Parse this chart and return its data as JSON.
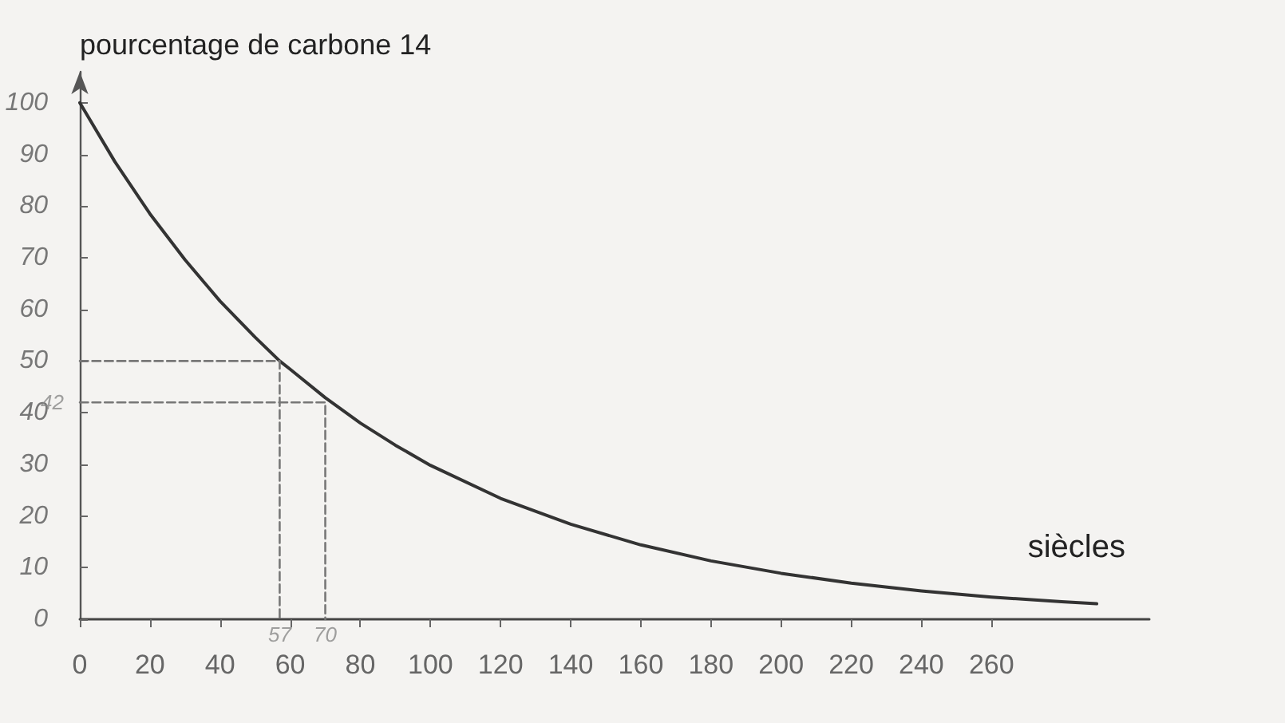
{
  "chart_data": {
    "type": "line",
    "ylabel": "pourcentage de carbone 14",
    "xlabel": "siècles",
    "xlim": [
      0,
      305
    ],
    "ylim": [
      0,
      106
    ],
    "xticks": [
      0,
      20,
      40,
      60,
      80,
      100,
      120,
      140,
      160,
      180,
      200,
      220,
      240,
      260
    ],
    "yticks": [
      0,
      10,
      20,
      30,
      40,
      50,
      60,
      70,
      80,
      90,
      100
    ],
    "grid": false,
    "marker": "none",
    "series": [
      {
        "color": "#333333",
        "line_style": "solid",
        "x": [
          0,
          10,
          20,
          30,
          40,
          50,
          57,
          60,
          70,
          80,
          90,
          100,
          120,
          140,
          160,
          180,
          200,
          220,
          240,
          260,
          280,
          290
        ],
        "values": [
          100,
          88.6,
          78.5,
          69.6,
          61.6,
          54.6,
          50,
          48.4,
          42.9,
          38,
          33.7,
          29.8,
          23.4,
          18.4,
          14.4,
          11.3,
          8.9,
          7,
          5.5,
          4.3,
          3.4,
          3
        ]
      },
      {
        "color": "#777777",
        "line_style": "dashed",
        "x": [
          0,
          57,
          57
        ],
        "values": [
          50,
          50,
          0
        ]
      },
      {
        "color": "#777777",
        "line_style": "dashed",
        "x": [
          0,
          70,
          70
        ],
        "values": [
          42,
          42,
          0
        ]
      }
    ],
    "annotations": [
      {
        "text": "57",
        "x": 57,
        "y": 0
      },
      {
        "text": "70",
        "x": 70,
        "y": 0
      },
      {
        "text": "42",
        "x": 0,
        "y": 42
      }
    ]
  }
}
